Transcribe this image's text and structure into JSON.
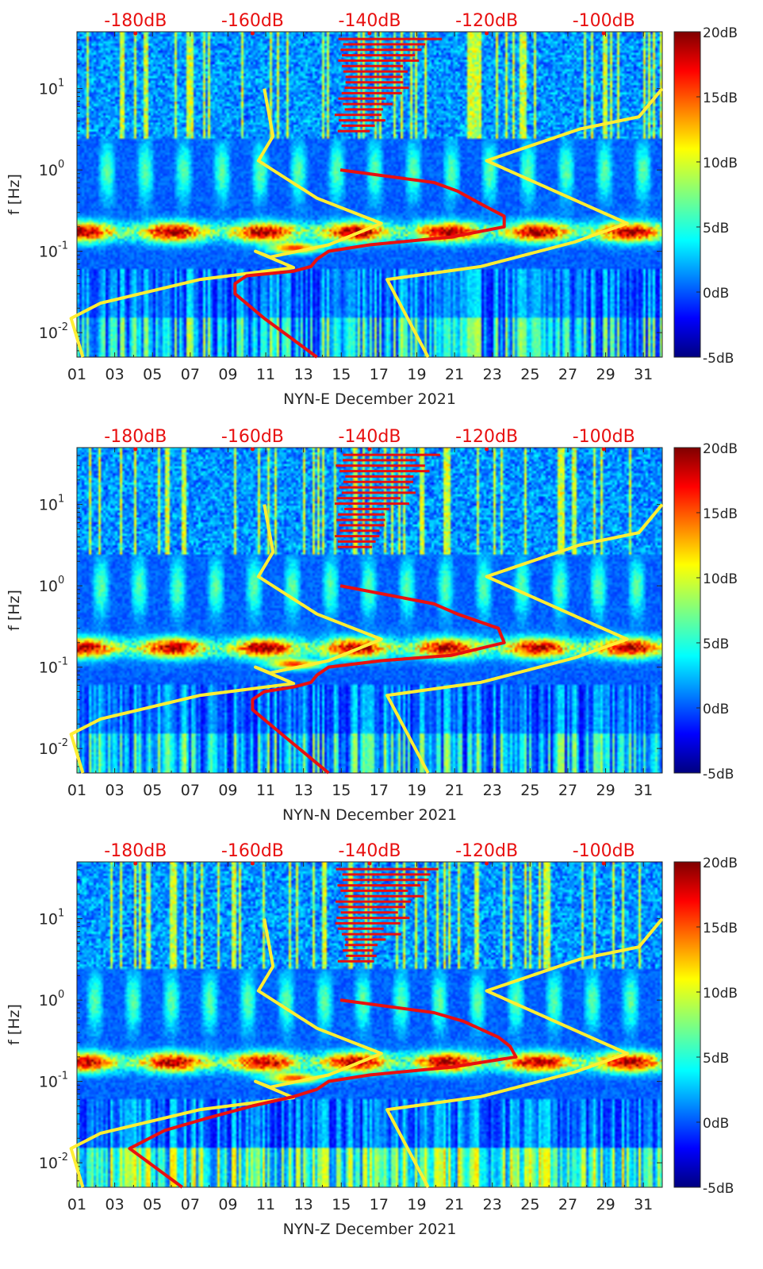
{
  "chart_data": [
    {
      "type": "heatmap",
      "title": "",
      "xlabel": "NYN-E December 2021",
      "ylabel": "f [Hz]",
      "x_range": [
        1,
        32
      ],
      "x_ticks": [
        "01",
        "03",
        "05",
        "07",
        "09",
        "11",
        "13",
        "15",
        "17",
        "19",
        "21",
        "23",
        "25",
        "27",
        "29",
        "31"
      ],
      "y_range": [
        0.005,
        50
      ],
      "y_scale": "log",
      "y_ticks": [
        {
          "v": 0.01,
          "b": "10",
          "e": "-2"
        },
        {
          "v": 0.1,
          "b": "10",
          "e": "-1"
        },
        {
          "v": 1,
          "b": "10",
          "e": "0"
        },
        {
          "v": 10,
          "b": "10",
          "e": "1"
        }
      ],
      "top_axis_labels": [
        "-180dB",
        "-160dB",
        "-140dB",
        "-120dB",
        "-100dB"
      ],
      "top_axis_range": [
        -190,
        -90
      ],
      "colorbar": {
        "range": [
          -5,
          20
        ],
        "ticks": [
          "20dB",
          "15dB",
          "10dB",
          "5dB",
          "0dB",
          "-5dB"
        ],
        "colormap": "jet"
      },
      "series": [
        {
          "name": "upper-noise-model",
          "color": "#ffee33",
          "points": [
            [
              -158,
              10
            ],
            [
              -156.5,
              2.6
            ],
            [
              -159,
              1.3
            ],
            [
              -149,
              0.45
            ],
            [
              -138,
              0.22
            ],
            [
              -147,
              0.12
            ],
            [
              -157,
              0.085
            ],
            [
              -159.5,
              0.1
            ],
            [
              -153,
              0.063
            ],
            [
              -169,
              0.045
            ],
            [
              -186,
              0.023
            ],
            [
              -191,
              0.015
            ],
            [
              -189,
              0.005
            ]
          ]
        },
        {
          "name": "lower-noise-model",
          "color": "#ffee33",
          "points": [
            [
              -90,
              10
            ],
            [
              -94,
              4.5
            ],
            [
              -104,
              3.2
            ],
            [
              -120,
              1.3
            ],
            [
              -96,
              0.22
            ],
            [
              -105,
              0.13
            ],
            [
              -121,
              0.065
            ],
            [
              -137,
              0.045
            ],
            [
              -130,
              0.005
            ]
          ]
        },
        {
          "name": "psd-percentile",
          "color": "#e81010",
          "points": [
            [
              -145,
              1
            ],
            [
              -129,
              0.7
            ],
            [
              -125,
              0.55
            ],
            [
              -120,
              0.35
            ],
            [
              -117,
              0.27
            ],
            [
              -117,
              0.2
            ],
            [
              -126,
              0.15
            ],
            [
              -140,
              0.12
            ],
            [
              -147,
              0.1
            ],
            [
              -149,
              0.08
            ],
            [
              -150,
              0.065
            ],
            [
              -153,
              0.057
            ],
            [
              -161,
              0.05
            ],
            [
              -163,
              0.04
            ],
            [
              -163,
              0.03
            ],
            [
              -158,
              0.015
            ],
            [
              -149,
              0.005
            ]
          ]
        }
      ]
    },
    {
      "type": "heatmap",
      "title": "",
      "xlabel": "NYN-N December 2021",
      "ylabel": "f [Hz]",
      "x_range": [
        1,
        32
      ],
      "x_ticks": [
        "01",
        "03",
        "05",
        "07",
        "09",
        "11",
        "13",
        "15",
        "17",
        "19",
        "21",
        "23",
        "25",
        "27",
        "29",
        "31"
      ],
      "y_range": [
        0.005,
        50
      ],
      "y_scale": "log",
      "y_ticks": [
        {
          "v": 0.01,
          "b": "10",
          "e": "-2"
        },
        {
          "v": 0.1,
          "b": "10",
          "e": "-1"
        },
        {
          "v": 1,
          "b": "10",
          "e": "0"
        },
        {
          "v": 10,
          "b": "10",
          "e": "1"
        }
      ],
      "top_axis_labels": [
        "-180dB",
        "-160dB",
        "-140dB",
        "-120dB",
        "-100dB"
      ],
      "top_axis_range": [
        -190,
        -90
      ],
      "colorbar": {
        "range": [
          -5,
          20
        ],
        "ticks": [
          "20dB",
          "15dB",
          "10dB",
          "5dB",
          "0dB",
          "-5dB"
        ],
        "colormap": "jet"
      },
      "series": [
        {
          "name": "upper-noise-model",
          "color": "#ffee33",
          "points": [
            [
              -158,
              10
            ],
            [
              -156.5,
              2.6
            ],
            [
              -159,
              1.3
            ],
            [
              -149,
              0.45
            ],
            [
              -138,
              0.22
            ],
            [
              -147,
              0.12
            ],
            [
              -157,
              0.085
            ],
            [
              -159.5,
              0.1
            ],
            [
              -153,
              0.063
            ],
            [
              -169,
              0.045
            ],
            [
              -186,
              0.023
            ],
            [
              -191,
              0.015
            ],
            [
              -189,
              0.005
            ]
          ]
        },
        {
          "name": "lower-noise-model",
          "color": "#ffee33",
          "points": [
            [
              -90,
              10
            ],
            [
              -94,
              4.5
            ],
            [
              -104,
              3.2
            ],
            [
              -120,
              1.3
            ],
            [
              -96,
              0.22
            ],
            [
              -105,
              0.13
            ],
            [
              -121,
              0.065
            ],
            [
              -137,
              0.045
            ],
            [
              -130,
              0.005
            ]
          ]
        },
        {
          "name": "psd-percentile",
          "color": "#e81010",
          "points": [
            [
              -145,
              1
            ],
            [
              -129,
              0.6
            ],
            [
              -125,
              0.45
            ],
            [
              -118,
              0.3
            ],
            [
              -117,
              0.2
            ],
            [
              -126,
              0.14
            ],
            [
              -138,
              0.12
            ],
            [
              -147,
              0.1
            ],
            [
              -149,
              0.08
            ],
            [
              -150,
              0.065
            ],
            [
              -153,
              0.057
            ],
            [
              -158,
              0.05
            ],
            [
              -160,
              0.04
            ],
            [
              -160,
              0.03
            ],
            [
              -155,
              0.015
            ],
            [
              -147,
              0.005
            ]
          ]
        }
      ]
    },
    {
      "type": "heatmap",
      "title": "",
      "xlabel": "NYN-Z December 2021",
      "ylabel": "f [Hz]",
      "x_range": [
        1,
        32
      ],
      "x_ticks": [
        "01",
        "03",
        "05",
        "07",
        "09",
        "11",
        "13",
        "15",
        "17",
        "19",
        "21",
        "23",
        "25",
        "27",
        "29",
        "31"
      ],
      "y_range": [
        0.005,
        50
      ],
      "y_scale": "log",
      "y_ticks": [
        {
          "v": 0.01,
          "b": "10",
          "e": "-2"
        },
        {
          "v": 0.1,
          "b": "10",
          "e": "-1"
        },
        {
          "v": 1,
          "b": "10",
          "e": "0"
        },
        {
          "v": 10,
          "b": "10",
          "e": "1"
        }
      ],
      "top_axis_labels": [
        "-180dB",
        "-160dB",
        "-140dB",
        "-120dB",
        "-100dB"
      ],
      "top_axis_range": [
        -190,
        -90
      ],
      "colorbar": {
        "range": [
          -5,
          20
        ],
        "ticks": [
          "20dB",
          "15dB",
          "10dB",
          "5dB",
          "0dB",
          "-5dB"
        ],
        "colormap": "jet"
      },
      "series": [
        {
          "name": "upper-noise-model",
          "color": "#ffee33",
          "points": [
            [
              -158,
              10
            ],
            [
              -156.5,
              2.6
            ],
            [
              -159,
              1.3
            ],
            [
              -149,
              0.45
            ],
            [
              -138,
              0.22
            ],
            [
              -147,
              0.12
            ],
            [
              -157,
              0.085
            ],
            [
              -159.5,
              0.1
            ],
            [
              -153,
              0.063
            ],
            [
              -169,
              0.045
            ],
            [
              -186,
              0.023
            ],
            [
              -191,
              0.015
            ],
            [
              -189,
              0.005
            ]
          ]
        },
        {
          "name": "lower-noise-model",
          "color": "#ffee33",
          "points": [
            [
              -90,
              10
            ],
            [
              -94,
              4.5
            ],
            [
              -104,
              3.2
            ],
            [
              -120,
              1.3
            ],
            [
              -96,
              0.22
            ],
            [
              -105,
              0.13
            ],
            [
              -121,
              0.065
            ],
            [
              -137,
              0.045
            ],
            [
              -130,
              0.005
            ]
          ]
        },
        {
          "name": "psd-percentile",
          "color": "#e81010",
          "points": [
            [
              -145,
              1
            ],
            [
              -129,
              0.7
            ],
            [
              -124,
              0.55
            ],
            [
              -118,
              0.35
            ],
            [
              -116,
              0.27
            ],
            [
              -115,
              0.2
            ],
            [
              -126,
              0.15
            ],
            [
              -140,
              0.12
            ],
            [
              -147,
              0.1
            ],
            [
              -149,
              0.08
            ],
            [
              -153,
              0.065
            ],
            [
              -160,
              0.05
            ],
            [
              -168,
              0.035
            ],
            [
              -175,
              0.025
            ],
            [
              -181,
              0.015
            ],
            [
              -172,
              0.005
            ]
          ]
        }
      ]
    }
  ]
}
